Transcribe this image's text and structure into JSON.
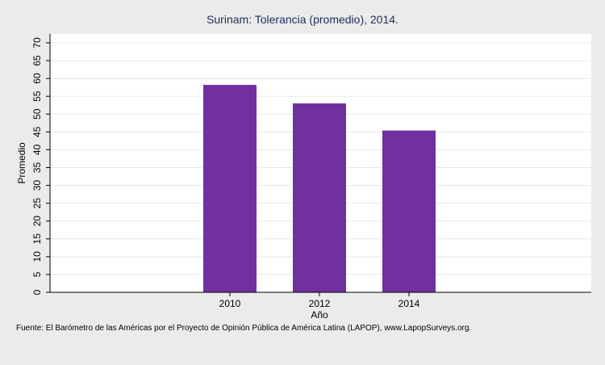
{
  "chart_data": {
    "type": "bar",
    "title": "Surinam: Tolerancia (promedio), 2014.",
    "xlabel": "Año",
    "ylabel": "Promedio",
    "categories": [
      "2010",
      "2012",
      "2014"
    ],
    "values": [
      58.2,
      53.0,
      45.4
    ],
    "ylim": [
      0,
      72.5
    ],
    "yticks": [
      0,
      5,
      10,
      15,
      20,
      25,
      30,
      35,
      40,
      45,
      50,
      55,
      60,
      65,
      70
    ],
    "grid": true,
    "bar_color": "#7030a0",
    "plot_background": "#ffffff",
    "page_background": "#ebebeb"
  },
  "source": "Fuente: El Barómetro de las Américas por el Proyecto de Opinión Pública de América Latina (LAPOP), www.LapopSurveys.org."
}
